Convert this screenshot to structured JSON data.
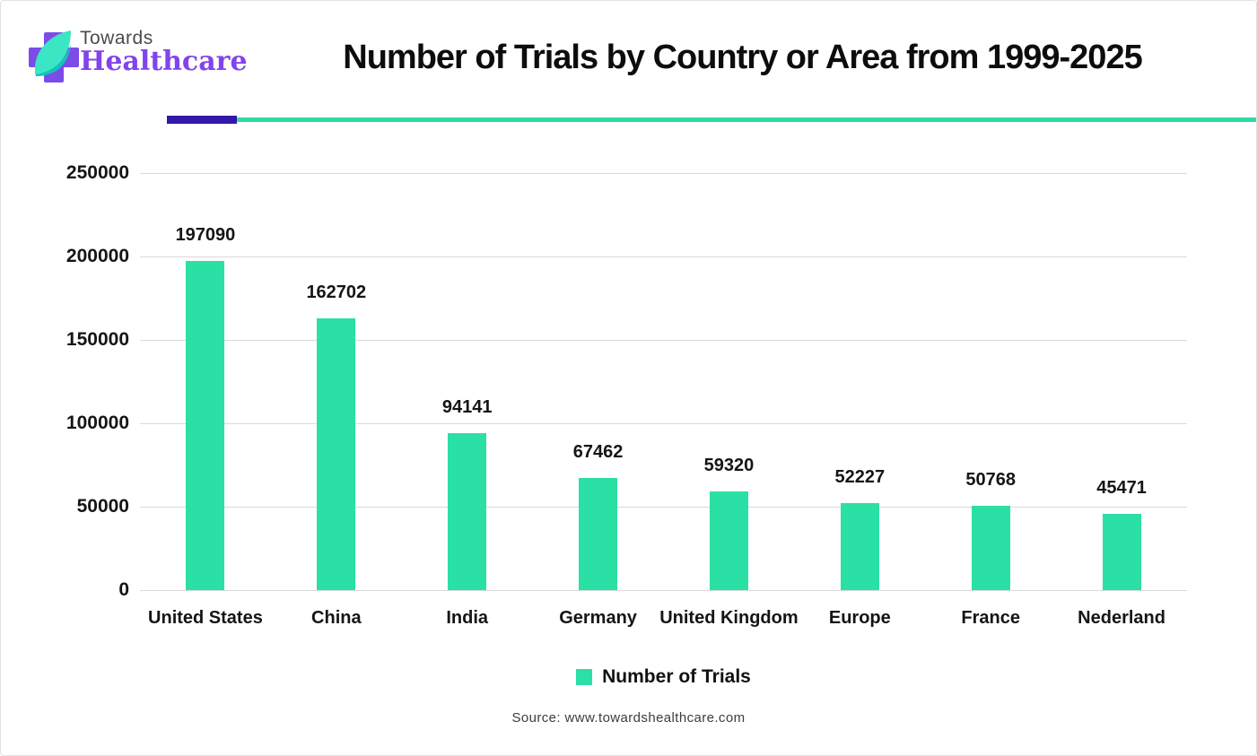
{
  "brand": {
    "towards": "Towards",
    "healthcare": "Healthcare"
  },
  "header": {
    "title": "Number of Trials by Country or Area from 1999-2025"
  },
  "legend": {
    "label": "Number of Trials"
  },
  "source": "Source: www.towardshealthcare.com",
  "colors": {
    "bar": "#2BE0A4",
    "accent_teal": "#2EDBA4",
    "accent_purple": "#3318A8",
    "logo_purple": "#7C4BE8",
    "leaf_light": "#3AE6C3",
    "leaf_dark": "#14C2B8",
    "gridline": "#d9d9d9"
  },
  "chart_data": {
    "type": "bar",
    "title": "Number of Trials by Country or Area from 1999-2025",
    "categories": [
      "United States",
      "China",
      "India",
      "Germany",
      "United Kingdom",
      "Europe",
      "France",
      "Nederland"
    ],
    "values": [
      197090,
      162702,
      94141,
      67462,
      59320,
      52227,
      50768,
      45471
    ],
    "series_name": "Number of Trials",
    "xlabel": "",
    "ylabel": "",
    "ylim": [
      0,
      250000
    ],
    "yticks": [
      0,
      50000,
      100000,
      150000,
      200000,
      250000
    ],
    "grid": true,
    "data_labels": true,
    "legend_position": "bottom"
  }
}
